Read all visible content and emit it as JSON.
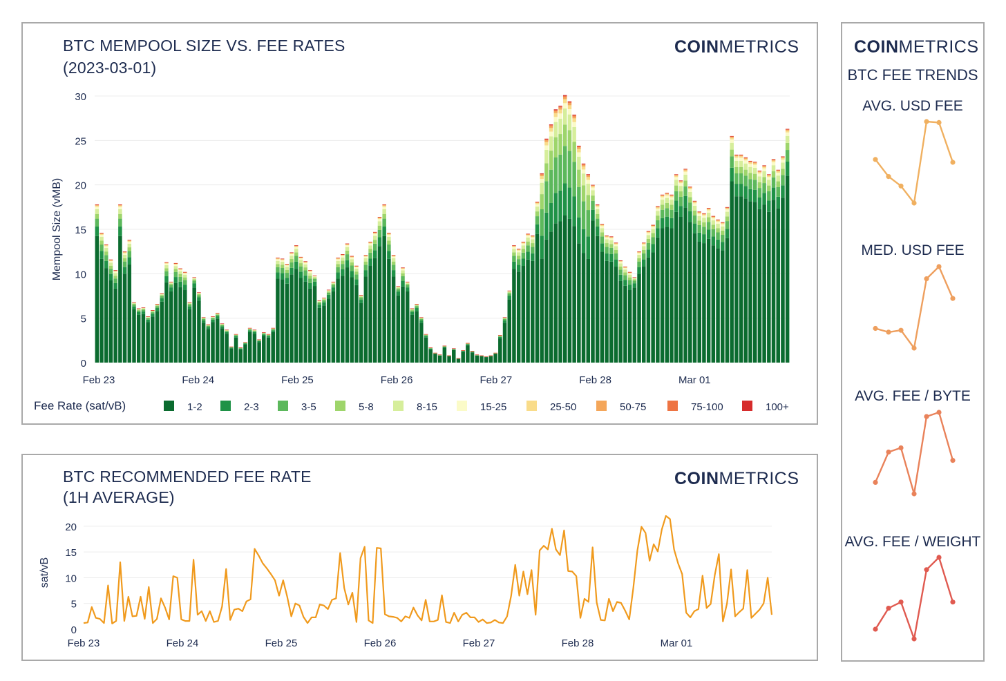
{
  "chart_data": [
    {
      "type": "bar",
      "title": "BTC MEMPOOL SIZE VS. FEE RATES",
      "subtitle": "(2023-03-01)",
      "logo": {
        "bold": "COIN",
        "light": "METRICS"
      },
      "ylabel": "Mempool Size (vMB)",
      "ylim": [
        0,
        30
      ],
      "yticks": [
        0,
        5,
        10,
        15,
        20,
        25,
        30
      ],
      "xticks": [
        "Feb 23",
        "Feb 24",
        "Feb 25",
        "Feb 26",
        "Feb 27",
        "Feb 28",
        "Mar 01"
      ],
      "legend_title": "Fee Rate (sat/vB)",
      "legend_position": "bottom",
      "series": [
        {
          "name": "1-2",
          "color": "#0b6b2f"
        },
        {
          "name": "2-3",
          "color": "#1f9247"
        },
        {
          "name": "3-5",
          "color": "#5cb85c"
        },
        {
          "name": "5-8",
          "color": "#9ed56b"
        },
        {
          "name": "8-15",
          "color": "#d6ee9b"
        },
        {
          "name": "15-25",
          "color": "#fbfbc8"
        },
        {
          "name": "25-50",
          "color": "#f9dc8a"
        },
        {
          "name": "50-75",
          "color": "#f4a65a"
        },
        {
          "name": "75-100",
          "color": "#ee7443"
        },
        {
          "name": "100+",
          "color": "#d62c2c"
        }
      ],
      "totals": [
        17.8,
        14.6,
        13.3,
        11.6,
        10.4,
        17.8,
        12.5,
        13.8,
        6.8,
        6.1,
        6.2,
        5.2,
        5.9,
        6.6,
        7.8,
        11.3,
        9.1,
        11.2,
        10.6,
        10.2,
        6.8,
        9.6,
        7.9,
        5.1,
        4.3,
        5.2,
        5.6,
        4.4,
        3.7,
        1.8,
        3.2,
        1.7,
        2.3,
        3.9,
        3.7,
        2.6,
        3.4,
        3.2,
        3.9,
        11.8,
        11.7,
        11.1,
        12.4,
        13.2,
        11.9,
        11.4,
        10.4,
        9.8,
        7.0,
        7.3,
        8.2,
        9.1,
        11.8,
        12.2,
        13.4,
        12.0,
        10.9,
        7.6,
        12.1,
        13.6,
        14.7,
        16.4,
        17.8,
        14.6,
        12.1,
        8.6,
        10.7,
        9.1,
        6.1,
        6.6,
        5.1,
        3.2,
        1.7,
        1.1,
        0.9,
        1.9,
        0.8,
        1.6,
        0.5,
        1.4,
        2.2,
        1.3,
        0.9,
        0.8,
        0.7,
        0.8,
        1.1,
        3.1,
        5.1,
        8.1,
        13.2,
        12.8,
        13.6,
        14.5,
        14.3,
        18.1,
        21.3,
        25.2,
        26.8,
        28.5,
        28.9,
        30.1,
        29.4,
        27.9,
        24.4,
        22.4,
        21.2,
        20.0,
        17.8,
        15.6,
        14.3,
        14.2,
        13.5,
        11.5,
        10.8,
        10.2,
        9.6,
        12.5,
        13.5,
        14.8,
        15.5,
        17.6,
        18.9,
        19.1,
        18.9,
        21.2,
        20.5,
        21.8,
        19.8,
        18.2,
        17.0,
        16.8,
        17.4,
        16.5,
        16.1,
        15.8,
        17.5,
        25.5,
        23.4,
        23.4,
        23.1,
        22.7,
        22.6,
        21.6,
        22.2,
        21.2,
        22.9,
        21.7,
        23.2,
        26.3
      ],
      "boundaries": [
        [
          0,
          0
        ],
        [
          1,
          1
        ],
        [
          2,
          2
        ],
        [
          3,
          3
        ],
        [
          4,
          4
        ],
        [
          5,
          5
        ],
        [
          6,
          6
        ],
        [
          7,
          7
        ],
        [
          8,
          8
        ],
        [
          9,
          9
        ],
        [
          10,
          10
        ],
        [
          11,
          11
        ],
        [
          12,
          12
        ],
        [
          13,
          13
        ],
        [
          14,
          14
        ],
        [
          15,
          15
        ],
        [
          16,
          16
        ],
        [
          17,
          17
        ],
        [
          18,
          18
        ],
        [
          19,
          19
        ],
        [
          20,
          20
        ],
        [
          21,
          21
        ],
        [
          22,
          22
        ],
        [
          23,
          23
        ],
        [
          24,
          24
        ],
        [
          25,
          25
        ],
        [
          26,
          26
        ],
        [
          27,
          27
        ],
        [
          28,
          28
        ],
        [
          29,
          29
        ],
        [
          30,
          30
        ],
        [
          31,
          31
        ],
        [
          32,
          32
        ],
        [
          33,
          33
        ],
        [
          34,
          34
        ],
        [
          35,
          35
        ],
        [
          36,
          36
        ],
        [
          37,
          37
        ],
        [
          38,
          38
        ],
        [
          39,
          39
        ],
        [
          40,
          40
        ],
        [
          41,
          41
        ],
        [
          42,
          42
        ],
        [
          43,
          43
        ],
        [
          44,
          44
        ],
        [
          45,
          45
        ],
        [
          46,
          46
        ],
        [
          47,
          47
        ],
        [
          48,
          48
        ],
        [
          49,
          49
        ],
        [
          50,
          50
        ],
        [
          51,
          51
        ],
        [
          52,
          52
        ],
        [
          53,
          53
        ],
        [
          54,
          54
        ],
        [
          55,
          55
        ],
        [
          56,
          56
        ],
        [
          57,
          57
        ],
        [
          58,
          58
        ],
        [
          59,
          59
        ],
        [
          60,
          60
        ],
        [
          61,
          61
        ],
        [
          62,
          62
        ],
        [
          63,
          63
        ],
        [
          64,
          64
        ],
        [
          65,
          65
        ],
        [
          66,
          66
        ],
        [
          67,
          67
        ],
        [
          68,
          68
        ],
        [
          69,
          69
        ],
        [
          70,
          70
        ],
        [
          71,
          71
        ],
        [
          72,
          72
        ],
        [
          73,
          73
        ],
        [
          74,
          74
        ],
        [
          75,
          75
        ],
        [
          76,
          76
        ],
        [
          77,
          77
        ],
        [
          78,
          78
        ],
        [
          79,
          79
        ],
        [
          80,
          80
        ],
        [
          81,
          81
        ],
        [
          82,
          82
        ],
        [
          83,
          83
        ],
        [
          84,
          84
        ],
        [
          85,
          85
        ],
        [
          86,
          86
        ],
        [
          87,
          87
        ],
        [
          88,
          88
        ],
        [
          89,
          89
        ],
        [
          90,
          90
        ],
        [
          91,
          91
        ],
        [
          92,
          92
        ],
        [
          93,
          93
        ],
        [
          94,
          94
        ],
        [
          95,
          95
        ],
        [
          96,
          96
        ],
        [
          97,
          97
        ],
        [
          98,
          98
        ],
        [
          99,
          99
        ],
        [
          100,
          100
        ],
        [
          101,
          101
        ],
        [
          102,
          102
        ],
        [
          103,
          103
        ],
        [
          104,
          104
        ],
        [
          105,
          105
        ],
        [
          106,
          106
        ],
        [
          107,
          107
        ],
        [
          108,
          108
        ],
        [
          109,
          109
        ],
        [
          110,
          110
        ],
        [
          111,
          111
        ],
        [
          112,
          112
        ],
        [
          113,
          113
        ],
        [
          114,
          114
        ],
        [
          115,
          115
        ],
        [
          116,
          116
        ],
        [
          117,
          117
        ],
        [
          118,
          118
        ],
        [
          119,
          119
        ],
        [
          120,
          120
        ],
        [
          121,
          121
        ],
        [
          122,
          122
        ],
        [
          123,
          123
        ],
        [
          124,
          124
        ],
        [
          125,
          125
        ],
        [
          126,
          126
        ],
        [
          127,
          127
        ],
        [
          128,
          128
        ],
        [
          129,
          129
        ],
        [
          130,
          130
        ],
        [
          131,
          131
        ],
        [
          132,
          132
        ],
        [
          133,
          133
        ],
        [
          134,
          134
        ],
        [
          135,
          135
        ],
        [
          136,
          136
        ],
        [
          137,
          137
        ],
        [
          138,
          138
        ],
        [
          139,
          139
        ],
        [
          140,
          140
        ],
        [
          141,
          141
        ],
        [
          142,
          142
        ],
        [
          143,
          143
        ],
        [
          144,
          144
        ],
        [
          145,
          145
        ],
        [
          146,
          146
        ],
        [
          147,
          147
        ]
      ]
    },
    {
      "type": "line",
      "title": "BTC RECOMMENDED FEE RATE",
      "subtitle": "(1H AVERAGE)",
      "logo": {
        "bold": "COIN",
        "light": "METRICS"
      },
      "ylabel": "sat/vB",
      "ylim": [
        0,
        22
      ],
      "yticks": [
        0,
        5,
        10,
        15,
        20
      ],
      "xticks": [
        "Feb 23",
        "Feb 24",
        "Feb 25",
        "Feb 26",
        "Feb 27",
        "Feb 28",
        "Mar 01"
      ],
      "color": "#f09a1d",
      "values": [
        1.2,
        1.3,
        4.3,
        2.2,
        2.0,
        1.2,
        8.5,
        1.1,
        1.6,
        13.0,
        1.6,
        6.3,
        2.5,
        2.6,
        6.3,
        2.0,
        8.2,
        1.2,
        2.0,
        6.0,
        4.2,
        1.9,
        10.3,
        10.0,
        1.9,
        1.6,
        1.6,
        13.5,
        2.8,
        3.5,
        1.6,
        3.5,
        1.4,
        1.6,
        4.4,
        11.7,
        1.8,
        3.8,
        4.0,
        3.5,
        5.4,
        5.8,
        15.6,
        14.3,
        12.8,
        11.8,
        10.7,
        9.5,
        6.5,
        9.5,
        6.3,
        2.5,
        5.0,
        4.6,
        2.4,
        1.2,
        2.3,
        2.3,
        4.8,
        4.6,
        3.9,
        5.7,
        6.0,
        14.8,
        8.0,
        4.8,
        7.1,
        1.4,
        13.8,
        16.0,
        1.7,
        1.2,
        15.8,
        15.7,
        2.9,
        2.5,
        2.4,
        2.2,
        1.5,
        2.5,
        2.2,
        4.2,
        2.7,
        1.7,
        5.7,
        1.5,
        1.5,
        1.8,
        6.6,
        1.4,
        1.2,
        3.2,
        1.5,
        2.8,
        3.2,
        2.3,
        2.3,
        1.4,
        1.9,
        1.2,
        1.3,
        1.8,
        1.3,
        1.2,
        2.5,
        6.5,
        12.5,
        6.5,
        11.2,
        6.8,
        11.5,
        2.8,
        15.3,
        16.2,
        15.5,
        19.5,
        15.5,
        14.4,
        19.2,
        11.3,
        11.2,
        10.3,
        2.2,
        5.9,
        5.3,
        15.9,
        5.2,
        1.8,
        1.7,
        5.9,
        3.5,
        5.3,
        5.1,
        3.6,
        1.9,
        8.0,
        15.3,
        19.9,
        18.7,
        13.3,
        16.5,
        15.1,
        19.4,
        22.0,
        21.4,
        15.5,
        12.8,
        10.7,
        3.2,
        2.3,
        3.5,
        3.9,
        10.4,
        4.1,
        4.9,
        10.5,
        14.6,
        1.5,
        5.0,
        11.6,
        2.5,
        3.3,
        4.0,
        11.5,
        2.2,
        3.0,
        3.8,
        5.0,
        10.0,
        2.8
      ]
    },
    {
      "type": "line",
      "title": "AVG. USD FEE",
      "color": "#f0b060",
      "values": [
        22.9,
        21.1,
        20.1,
        18.3,
        26.9,
        26.8,
        22.6
      ]
    },
    {
      "type": "line",
      "title": "MED. USD FEE",
      "color": "#ee9f5e",
      "values": [
        4.0,
        3.6,
        3.8,
        1.9,
        9.3,
        10.6,
        7.2
      ]
    },
    {
      "type": "line",
      "title": "AVG. FEE / BYTE",
      "color": "#e9825a",
      "values": [
        10.7,
        13.6,
        14.0,
        9.6,
        17.0,
        17.4,
        12.8
      ]
    },
    {
      "type": "line",
      "title": "AVG. FEE / WEIGHT",
      "color": "#e05a50",
      "values": [
        3.0,
        5.4,
        6.1,
        1.9,
        9.8,
        11.2,
        6.1
      ]
    }
  ],
  "side_panel": {
    "logo": {
      "bold": "COIN",
      "light": "METRICS"
    },
    "heading": "BTC FEE TRENDS"
  }
}
